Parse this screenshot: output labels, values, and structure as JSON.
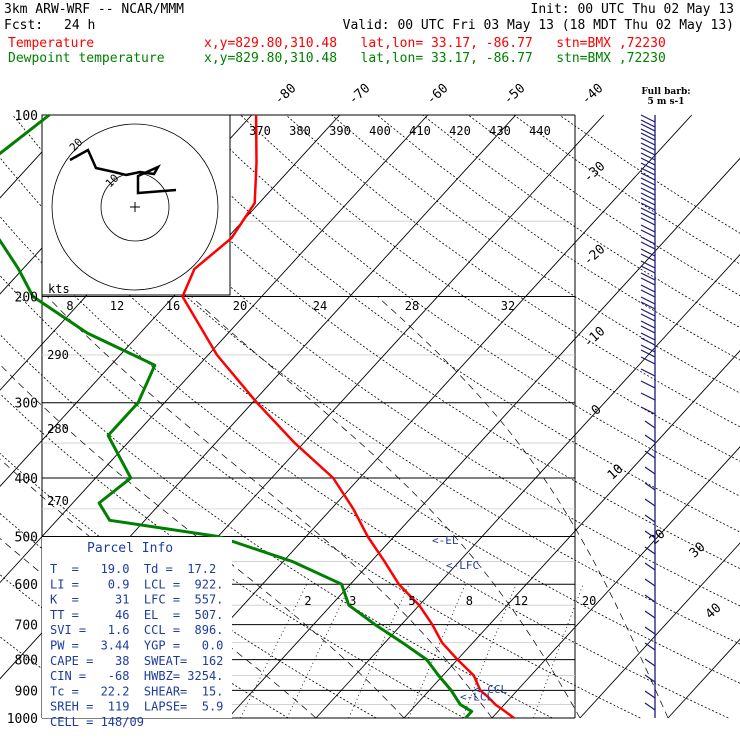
{
  "header": {
    "model": "3km ARW-WRF -- NCAR/MMM",
    "init": "Init: 00 UTC Thu 02 May 13",
    "fcst_label": "Fcst:",
    "fcst_value": "24 h",
    "valid": "Valid: 00 UTC Fri 03 May 13 (18 MDT Thu 02 May 13)",
    "temp_label": "Temperature",
    "dew_label": "Dewpoint temperature",
    "location": "x,y=829.80,310.48   lat,lon= 33.17, -86.77   stn=BMX ,72230"
  },
  "colors": {
    "temperature": "#ff0000",
    "dewpoint": "#008000",
    "parcel_info": "#1e3c9e",
    "barbs": "#1a1a80",
    "grid": "#000000"
  },
  "chart_data": {
    "type": "skew-t log-p sounding",
    "pressure_levels": [
      100,
      200,
      300,
      400,
      500,
      600,
      700,
      800,
      900,
      1000
    ],
    "temperature_axis_labels": [
      "-80",
      "-70",
      "-60",
      "-50",
      "-40",
      "-30",
      "-20",
      "-10",
      "0",
      "10",
      "20",
      "30",
      "40"
    ],
    "theta_labels_top": [
      "370",
      "380",
      "390",
      "400",
      "410",
      "420",
      "430",
      "440"
    ],
    "theta_labels_left": [
      "290",
      "280",
      "270"
    ],
    "mixing_ratio_labels": [
      "2",
      "3",
      "5",
      "8",
      "12",
      "20"
    ],
    "hodograph": {
      "units": "kts",
      "speed_scale": [
        "8",
        "12",
        "16",
        "20",
        "24",
        "28",
        "32"
      ],
      "ring_labels": [
        "20",
        "10"
      ]
    },
    "barb_legend": {
      "line1": "Full barb:",
      "line2": "5 m s-1"
    },
    "temperature_profile": [
      {
        "p": 1000,
        "t": 22.5
      },
      {
        "p": 975,
        "t": 20.8
      },
      {
        "p": 950,
        "t": 19.0
      },
      {
        "p": 925,
        "t": 17.5
      },
      {
        "p": 900,
        "t": 15.8
      },
      {
        "p": 850,
        "t": 13.5
      },
      {
        "p": 800,
        "t": 10.0
      },
      {
        "p": 750,
        "t": 6.5
      },
      {
        "p": 700,
        "t": 3.5
      },
      {
        "p": 650,
        "t": 0.0
      },
      {
        "p": 600,
        "t": -4.5
      },
      {
        "p": 550,
        "t": -8.5
      },
      {
        "p": 500,
        "t": -13.0
      },
      {
        "p": 450,
        "t": -17.5
      },
      {
        "p": 400,
        "t": -23.0
      },
      {
        "p": 350,
        "t": -31.0
      },
      {
        "p": 300,
        "t": -39.5
      },
      {
        "p": 250,
        "t": -49.0
      },
      {
        "p": 200,
        "t": -59.0
      },
      {
        "p": 180,
        "t": -60.5
      },
      {
        "p": 160,
        "t": -59.5
      },
      {
        "p": 140,
        "t": -60.5
      },
      {
        "p": 120,
        "t": -64.5
      },
      {
        "p": 100,
        "t": -69.5
      }
    ],
    "dewpoint_profile": [
      {
        "p": 1000,
        "t": 17.0
      },
      {
        "p": 975,
        "t": 17.0
      },
      {
        "p": 950,
        "t": 15.0
      },
      {
        "p": 900,
        "t": 12.5
      },
      {
        "p": 850,
        "t": 9.5
      },
      {
        "p": 800,
        "t": 6.5
      },
      {
        "p": 750,
        "t": 2.0
      },
      {
        "p": 700,
        "t": -3.0
      },
      {
        "p": 650,
        "t": -8.0
      },
      {
        "p": 600,
        "t": -11.0
      },
      {
        "p": 550,
        "t": -19.0
      },
      {
        "p": 500,
        "t": -30.0
      },
      {
        "p": 470,
        "t": -44.0
      },
      {
        "p": 440,
        "t": -47.0
      },
      {
        "p": 400,
        "t": -46.0
      },
      {
        "p": 340,
        "t": -53.0
      },
      {
        "p": 300,
        "t": -53.0
      },
      {
        "p": 260,
        "t": -55.0
      },
      {
        "p": 230,
        "t": -66.0
      },
      {
        "p": 200,
        "t": -76.0
      },
      {
        "p": 180,
        "t": -80.5
      },
      {
        "p": 160,
        "t": -86.0
      },
      {
        "p": 140,
        "t": -93.0
      },
      {
        "p": 120,
        "t": -95.0
      },
      {
        "p": 100,
        "t": -93.0
      }
    ],
    "annotations": [
      {
        "label": "<-EL",
        "p": 507
      },
      {
        "label": "<-LFC",
        "p": 557
      },
      {
        "label": "<-CCL",
        "p": 896
      },
      {
        "label": "<-LCL",
        "p": 922
      }
    ]
  },
  "parcel_info": {
    "title": "Parcel Info",
    "rows": [
      "T  =   19.0  Td =  17.2",
      "LI =    0.9  LCL =  922.",
      "K  =     31  LFC =  557.",
      "TT =     46  EL  =  507.",
      "SVI =   1.6  CCL =  896.",
      "PW =   3.44  YGP =   0.0",
      "CAPE =   38  SWEAT=  162",
      "CIN =   -68  HWBZ= 3254.",
      "Tc =   22.2  SHEAR=  15.",
      "SREH =  119  LAPSE=  5.9",
      "CELL = 148/09"
    ]
  }
}
